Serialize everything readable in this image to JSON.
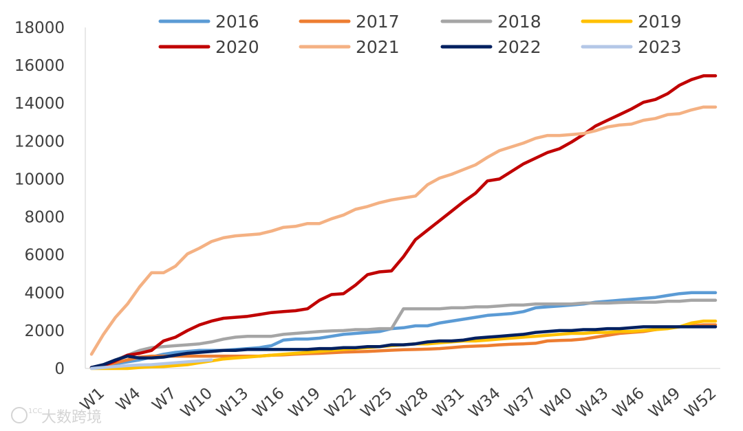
{
  "chart_data": {
    "type": "line",
    "title": "",
    "xlabel": "",
    "ylabel": "",
    "ylim": [
      0,
      18000
    ],
    "y_ticks": [
      0,
      2000,
      4000,
      6000,
      8000,
      10000,
      12000,
      14000,
      16000,
      18000
    ],
    "x_tick_labels": [
      "W1",
      "W4",
      "W7",
      "W10",
      "W13",
      "W16",
      "W19",
      "W22",
      "W25",
      "W28",
      "W31",
      "W34",
      "W37",
      "W40",
      "W43",
      "W46",
      "W49",
      "W52"
    ],
    "x_count": 53,
    "legend_position": "top",
    "series": [
      {
        "name": "2016",
        "color": "#5b9bd5",
        "values": [
          50,
          150,
          250,
          350,
          450,
          600,
          750,
          850,
          900,
          950,
          950,
          950,
          1000,
          1050,
          1100,
          1200,
          1500,
          1550,
          1550,
          1600,
          1700,
          1800,
          1850,
          1900,
          1950,
          2100,
          2150,
          2250,
          2250,
          2400,
          2500,
          2600,
          2700,
          2800,
          2850,
          2900,
          3000,
          3200,
          3250,
          3300,
          3350,
          3400,
          3500,
          3550,
          3600,
          3650,
          3700,
          3750,
          3850,
          3950,
          4000,
          4000,
          4000
        ]
      },
      {
        "name": "2017",
        "color": "#ed7d31",
        "values": [
          50,
          150,
          300,
          450,
          600,
          650,
          650,
          650,
          650,
          650,
          650,
          650,
          650,
          650,
          650,
          700,
          720,
          750,
          780,
          800,
          830,
          860,
          880,
          900,
          930,
          960,
          990,
          1000,
          1020,
          1050,
          1100,
          1150,
          1180,
          1200,
          1250,
          1280,
          1300,
          1330,
          1450,
          1480,
          1500,
          1550,
          1650,
          1750,
          1850,
          1900,
          1950,
          2050,
          2150,
          2200,
          2250,
          2300,
          2300
        ]
      },
      {
        "name": "2018",
        "color": "#a5a5a5",
        "values": [
          50,
          200,
          450,
          700,
          950,
          1100,
          1150,
          1200,
          1250,
          1300,
          1400,
          1550,
          1650,
          1700,
          1700,
          1700,
          1800,
          1850,
          1900,
          1950,
          1980,
          2000,
          2050,
          2050,
          2100,
          2100,
          3150,
          3150,
          3150,
          3150,
          3200,
          3200,
          3250,
          3250,
          3300,
          3350,
          3350,
          3400,
          3400,
          3400,
          3400,
          3450,
          3450,
          3450,
          3480,
          3500,
          3500,
          3500,
          3550,
          3550,
          3600,
          3600,
          3600
        ]
      },
      {
        "name": "2019",
        "color": "#ffc000",
        "values": [
          0,
          0,
          0,
          0,
          50,
          80,
          100,
          150,
          200,
          300,
          400,
          500,
          550,
          600,
          650,
          700,
          750,
          800,
          850,
          900,
          950,
          1000,
          1050,
          1100,
          1150,
          1200,
          1250,
          1300,
          1300,
          1350,
          1400,
          1450,
          1450,
          1500,
          1550,
          1600,
          1650,
          1700,
          1750,
          1800,
          1850,
          1850,
          1900,
          1900,
          1950,
          1950,
          2000,
          2050,
          2100,
          2200,
          2400,
          2500,
          2500
        ]
      },
      {
        "name": "2020",
        "color": "#c00000",
        "values": [
          50,
          150,
          400,
          700,
          800,
          950,
          1450,
          1650,
          2000,
          2300,
          2500,
          2650,
          2700,
          2750,
          2850,
          2950,
          3000,
          3050,
          3150,
          3600,
          3900,
          3950,
          4400,
          4950,
          5100,
          5150,
          5900,
          6800,
          7300,
          7800,
          8300,
          8800,
          9250,
          9900,
          10000,
          10400,
          10800,
          11100,
          11400,
          11600,
          11950,
          12350,
          12800,
          13100,
          13400,
          13700,
          14050,
          14200,
          14500,
          14950,
          15250,
          15450,
          15450
        ]
      },
      {
        "name": "2021",
        "color": "#f4b183",
        "values": [
          750,
          1800,
          2700,
          3400,
          4300,
          5050,
          5050,
          5400,
          6050,
          6350,
          6700,
          6900,
          7000,
          7050,
          7100,
          7250,
          7450,
          7500,
          7650,
          7650,
          7900,
          8100,
          8400,
          8550,
          8750,
          8900,
          9000,
          9100,
          9700,
          10050,
          10250,
          10500,
          10750,
          11150,
          11500,
          11700,
          11900,
          12150,
          12300,
          12300,
          12350,
          12400,
          12550,
          12750,
          12850,
          12900,
          13100,
          13200,
          13400,
          13450,
          13650,
          13800,
          13800
        ]
      },
      {
        "name": "2022",
        "color": "#002060",
        "values": [
          50,
          200,
          450,
          650,
          550,
          550,
          600,
          700,
          800,
          850,
          900,
          950,
          950,
          1000,
          1000,
          1000,
          1000,
          1000,
          1000,
          1050,
          1050,
          1100,
          1100,
          1150,
          1150,
          1250,
          1250,
          1300,
          1400,
          1450,
          1450,
          1500,
          1600,
          1650,
          1700,
          1750,
          1800,
          1900,
          1950,
          2000,
          2000,
          2050,
          2050,
          2100,
          2100,
          2150,
          2200,
          2200,
          2200,
          2200,
          2200,
          2200,
          2200
        ]
      },
      {
        "name": "2023",
        "color": "#b4c7e7",
        "values": [
          0,
          50,
          100,
          150,
          180,
          200,
          250,
          300,
          350,
          400,
          450,
          null,
          null,
          null,
          null,
          null,
          null,
          null,
          null,
          null,
          null,
          null,
          null,
          null,
          null,
          null,
          null,
          null,
          null,
          null,
          null,
          null,
          null,
          null,
          null,
          null,
          null,
          null,
          null,
          null,
          null,
          null,
          null,
          null,
          null,
          null,
          null,
          null,
          null,
          null,
          null,
          null,
          null
        ]
      }
    ]
  },
  "watermark": {
    "text": "大数跨境",
    "logo_text": "1CC"
  }
}
